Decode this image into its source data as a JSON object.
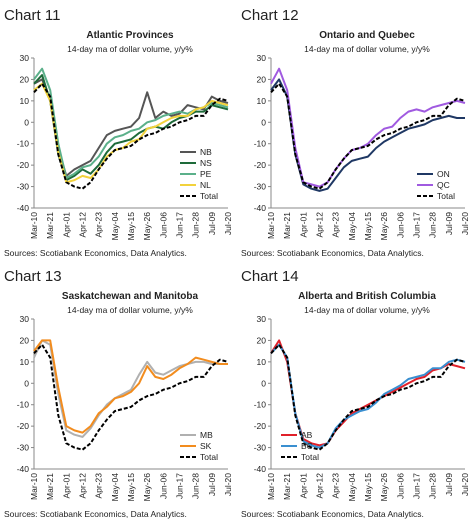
{
  "chart_data": [
    {
      "type": "line",
      "label": "Chart 11",
      "title": "Atlantic Provinces",
      "subtitle": "14-day ma of dollar volume, y/y%",
      "source": "Sources: Scotiabank Economics, Data Analytics.",
      "categories": [
        "Mar-10",
        null,
        "Mar-21",
        null,
        "Apr-01",
        null,
        "Apr-12",
        null,
        "Apr-23",
        null,
        "May-04",
        null,
        "May-15",
        null,
        "May-26",
        null,
        "Jun-06",
        null,
        "Jun-17",
        null,
        "Jun-28",
        null,
        "Jul-09",
        null,
        "Jul-20"
      ],
      "ylim": [
        -40,
        30
      ],
      "yticks": [
        -40,
        -30,
        -20,
        -10,
        0,
        10,
        20,
        30
      ],
      "legend": "bottom-right",
      "series": [
        {
          "name": "NB",
          "color": "#555555",
          "values": [
            18,
            20,
            10,
            -12,
            -25,
            -22,
            -20,
            -18,
            -12,
            -6,
            -4,
            -3,
            -2,
            2,
            14,
            2,
            5,
            3,
            4,
            8,
            7,
            6,
            12,
            10,
            9
          ]
        },
        {
          "name": "NS",
          "color": "#1e6b3a",
          "values": [
            18,
            22,
            10,
            -15,
            -27,
            -25,
            -22,
            -24,
            -20,
            -14,
            -10,
            -9,
            -8,
            -5,
            -3,
            -2,
            -3,
            0,
            2,
            3,
            5,
            5,
            8,
            7,
            6
          ]
        },
        {
          "name": "PE",
          "color": "#5bb08a",
          "values": [
            20,
            25,
            15,
            -10,
            -26,
            -24,
            -21,
            -20,
            -16,
            -10,
            -7,
            -6,
            -4,
            -3,
            0,
            1,
            3,
            4,
            5,
            4,
            6,
            7,
            9,
            8,
            7
          ]
        },
        {
          "name": "NL",
          "color": "#f2d23c",
          "values": [
            15,
            18,
            10,
            -14,
            -28,
            -27,
            -25,
            -26,
            -22,
            -16,
            -13,
            -12,
            -9,
            -8,
            -3,
            -2,
            0,
            2,
            3,
            3,
            6,
            7,
            10,
            9,
            8
          ]
        },
        {
          "name": "Total",
          "color": "#000000",
          "dash": true,
          "values": [
            14,
            18,
            12,
            -15,
            -28,
            -30,
            -31,
            -28,
            -22,
            -17,
            -13,
            -12,
            -11,
            -8,
            -6,
            -5,
            -3,
            -2,
            0,
            1,
            3,
            3,
            8,
            11,
            10
          ]
        }
      ]
    },
    {
      "type": "line",
      "label": "Chart 12",
      "title": "Ontario and Quebec",
      "subtitle": "14-day ma of dollar volume, y/y%",
      "source": "Sources: Scotiabank Economics, Data Analytics.",
      "categories": [
        "Mar-10",
        null,
        "Mar-21",
        null,
        "Apr-01",
        null,
        "Apr-12",
        null,
        "Apr-23",
        null,
        "May-04",
        null,
        "May-15",
        null,
        "May-26",
        null,
        "Jun-06",
        null,
        "Jun-17",
        null,
        "Jun-28",
        null,
        "Jul-09",
        null,
        "Jul-20"
      ],
      "ylim": [
        -40,
        30
      ],
      "yticks": [
        -40,
        -30,
        -20,
        -10,
        0,
        10,
        20,
        30
      ],
      "legend": "bottom-right",
      "series": [
        {
          "name": "ON",
          "color": "#1f3864",
          "values": [
            15,
            20,
            12,
            -15,
            -29,
            -31,
            -32,
            -31,
            -26,
            -21,
            -18,
            -17,
            -16,
            -12,
            -9,
            -7,
            -5,
            -3,
            -2,
            -1,
            1,
            2,
            3,
            2,
            2
          ]
        },
        {
          "name": "QC",
          "color": "#a05ae0",
          "values": [
            18,
            25,
            15,
            -12,
            -28,
            -29,
            -30,
            -28,
            -22,
            -17,
            -13,
            -12,
            -10,
            -6,
            -3,
            -2,
            2,
            5,
            6,
            5,
            7,
            8,
            9,
            10,
            9
          ]
        },
        {
          "name": "Total",
          "color": "#000000",
          "dash": true,
          "values": [
            14,
            18,
            12,
            -15,
            -28,
            -30,
            -31,
            -28,
            -22,
            -17,
            -13,
            -12,
            -11,
            -8,
            -6,
            -5,
            -3,
            -2,
            0,
            1,
            3,
            3,
            8,
            11,
            10
          ]
        }
      ]
    },
    {
      "type": "line",
      "label": "Chart 13",
      "title": "Saskatchewan and Manitoba",
      "subtitle": "14-day ma of dollar volume, y/y%",
      "source": "Sources: Scotiabank Economics, Data Analytics.",
      "categories": [
        "Mar-10",
        null,
        "Mar-21",
        null,
        "Apr-01",
        null,
        "Apr-12",
        null,
        "Apr-23",
        null,
        "May-04",
        null,
        "May-15",
        null,
        "May-26",
        null,
        "Jun-06",
        null,
        "Jun-17",
        null,
        "Jun-28",
        null,
        "Jul-09",
        null,
        "Jul-20"
      ],
      "ylim": [
        -40,
        30
      ],
      "yticks": [
        -40,
        -30,
        -20,
        -10,
        0,
        10,
        20,
        30
      ],
      "legend": "bottom-right",
      "series": [
        {
          "name": "MB",
          "color": "#b0b0b0",
          "values": [
            12,
            20,
            18,
            -5,
            -22,
            -24,
            -25,
            -21,
            -15,
            -10,
            -7,
            -5,
            -3,
            4,
            10,
            5,
            4,
            6,
            8,
            9,
            10,
            10,
            9,
            9,
            9
          ]
        },
        {
          "name": "SK",
          "color": "#f28c1e",
          "values": [
            15,
            20,
            20,
            -2,
            -20,
            -22,
            -23,
            -20,
            -14,
            -11,
            -7,
            -6,
            -4,
            0,
            8,
            3,
            2,
            4,
            7,
            9,
            12,
            11,
            10,
            9,
            9
          ]
        },
        {
          "name": "Total",
          "color": "#000000",
          "dash": true,
          "values": [
            14,
            18,
            12,
            -15,
            -28,
            -30,
            -31,
            -28,
            -22,
            -17,
            -13,
            -12,
            -11,
            -8,
            -6,
            -5,
            -3,
            -2,
            0,
            1,
            3,
            3,
            8,
            11,
            10
          ]
        }
      ]
    },
    {
      "type": "line",
      "label": "Chart 14",
      "title": "Alberta and British Columbia",
      "subtitle": "14-day ma of dollar volume, y/y%",
      "source": "Sources: Scotiabank Economics, Data Analytics.",
      "categories": [
        "Mar-10",
        null,
        "Mar-21",
        null,
        "Apr-01",
        null,
        "Apr-12",
        null,
        "Apr-23",
        null,
        "May-04",
        null,
        "May-15",
        null,
        "May-26",
        null,
        "Jun-06",
        null,
        "Jun-17",
        null,
        "Jun-28",
        null,
        "Jul-09",
        null,
        "Jul-20"
      ],
      "ylim": [
        -40,
        30
      ],
      "yticks": [
        -40,
        -30,
        -20,
        -10,
        0,
        10,
        20,
        30
      ],
      "legend": "bottom-left",
      "series": [
        {
          "name": "AB",
          "color": "#e0202a",
          "values": [
            14,
            20,
            10,
            -14,
            -26,
            -28,
            -29,
            -28,
            -22,
            -18,
            -14,
            -12,
            -10,
            -8,
            -6,
            -4,
            -2,
            0,
            2,
            3,
            6,
            7,
            9,
            8,
            7
          ]
        },
        {
          "name": "BC",
          "color": "#3a8fd0",
          "values": [
            14,
            18,
            12,
            -14,
            -27,
            -29,
            -30,
            -28,
            -21,
            -17,
            -15,
            -13,
            -12,
            -9,
            -5,
            -3,
            -1,
            2,
            3,
            4,
            7,
            7,
            10,
            11,
            10
          ]
        },
        {
          "name": "Total",
          "color": "#000000",
          "dash": true,
          "values": [
            14,
            18,
            12,
            -15,
            -28,
            -30,
            -31,
            -28,
            -22,
            -17,
            -13,
            -12,
            -11,
            -8,
            -6,
            -5,
            -3,
            -2,
            0,
            1,
            3,
            3,
            8,
            11,
            10
          ]
        }
      ]
    }
  ]
}
